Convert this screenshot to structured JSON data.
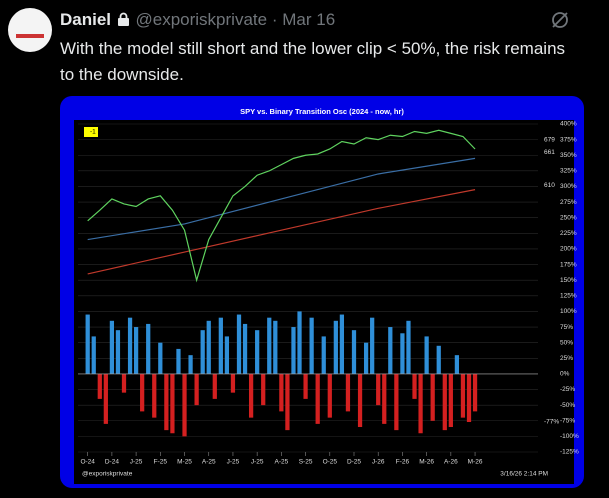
{
  "tweet": {
    "author": "Daniel",
    "handle": "@exporiskprivate",
    "separator": "·",
    "date": "Mar 16",
    "text": "With the model still short and the lower clip < 50%, the risk remains to the downside."
  },
  "chart_data": {
    "type": "combo",
    "title": "SPY vs. Binary Transition Osc (2024 - now, hr)",
    "watermark": "@exporiskprivate",
    "timestamp": "3/16/26 2:14 PM",
    "annotations": [
      "-1",
      "679",
      "661",
      "610",
      "-77%"
    ],
    "grid": true,
    "grid_color": "#2a2a2a",
    "xlim": [
      -0.4,
      18.6
    ],
    "xticks": [
      {
        "value": 0,
        "label": "O-24"
      },
      {
        "value": 1,
        "label": "D-24"
      },
      {
        "value": 2,
        "label": "J-25"
      },
      {
        "value": 3,
        "label": "F-25"
      },
      {
        "value": 4,
        "label": "M-25"
      },
      {
        "value": 5,
        "label": "A-25"
      },
      {
        "value": 6,
        "label": "J-25"
      },
      {
        "value": 7,
        "label": "J-25"
      },
      {
        "value": 8,
        "label": "A-25"
      },
      {
        "value": 9,
        "label": "S-25"
      },
      {
        "value": 10,
        "label": "O-25"
      },
      {
        "value": 11,
        "label": "D-25"
      },
      {
        "value": 12,
        "label": "J-26"
      },
      {
        "value": 13,
        "label": "F-26"
      },
      {
        "value": 14,
        "label": "M-26"
      },
      {
        "value": 15,
        "label": "A-26"
      },
      {
        "value": 16,
        "label": "M-26"
      }
    ],
    "ylim": [
      -125,
      400
    ],
    "yticks": [
      {
        "value": 400,
        "label": "400%"
      },
      {
        "value": 375,
        "label": "375%"
      },
      {
        "value": 350,
        "label": "350%"
      },
      {
        "value": 325,
        "label": "325%"
      },
      {
        "value": 300,
        "label": "300%"
      },
      {
        "value": 275,
        "label": "275%"
      },
      {
        "value": 250,
        "label": "250%"
      },
      {
        "value": 225,
        "label": "225%"
      },
      {
        "value": 200,
        "label": "200%"
      },
      {
        "value": 175,
        "label": "175%"
      },
      {
        "value": 150,
        "label": "150%"
      },
      {
        "value": 125,
        "label": "125%"
      },
      {
        "value": 100,
        "label": "100%"
      },
      {
        "value": 75,
        "label": "75%"
      },
      {
        "value": 50,
        "label": "50%"
      },
      {
        "value": 25,
        "label": "25%"
      },
      {
        "value": 0,
        "label": "0%"
      },
      {
        "value": -25,
        "label": "-25%"
      },
      {
        "value": -50,
        "label": "-50%"
      },
      {
        "value": -75,
        "label": "-75%"
      },
      {
        "value": -100,
        "label": "-100%"
      },
      {
        "value": -125,
        "label": "-125%"
      }
    ],
    "series": [
      {
        "type": "line",
        "color": "#c0392b",
        "x": [
          0,
          4,
          8,
          12,
          16
        ],
        "values": [
          160,
          195,
          230,
          265,
          295
        ]
      },
      {
        "type": "line",
        "color": "#3a6ea5",
        "x": [
          0,
          4,
          8,
          12,
          16
        ],
        "values": [
          215,
          240,
          280,
          320,
          345
        ]
      },
      {
        "type": "line",
        "color": "#5fd35f",
        "x": [
          0,
          0.5,
          1,
          1.5,
          2,
          2.5,
          3,
          3.5,
          4,
          4.5,
          5,
          5.5,
          6,
          6.5,
          7,
          7.5,
          8,
          8.5,
          9,
          9.5,
          10,
          10.5,
          11,
          11.5,
          12,
          12.5,
          13,
          13.5,
          14,
          14.5,
          15,
          15.5,
          16
        ],
        "values": [
          245,
          262,
          280,
          272,
          268,
          280,
          285,
          262,
          230,
          150,
          215,
          250,
          285,
          300,
          318,
          325,
          335,
          345,
          350,
          352,
          360,
          372,
          368,
          378,
          375,
          382,
          380,
          388,
          385,
          390,
          385,
          380,
          360
        ]
      },
      {
        "type": "bar",
        "positive_color": "#2f8fd8",
        "negative_color": "#d42020",
        "x": [
          0,
          0.25,
          0.5,
          0.75,
          1,
          1.25,
          1.5,
          1.75,
          2,
          2.25,
          2.5,
          2.75,
          3,
          3.25,
          3.5,
          3.75,
          4,
          4.25,
          4.5,
          4.75,
          5,
          5.25,
          5.5,
          5.75,
          6,
          6.25,
          6.5,
          6.75,
          7,
          7.25,
          7.5,
          7.75,
          8,
          8.25,
          8.5,
          8.75,
          9,
          9.25,
          9.5,
          9.75,
          10,
          10.25,
          10.5,
          10.75,
          11,
          11.25,
          11.5,
          11.75,
          12,
          12.25,
          12.5,
          12.75,
          13,
          13.25,
          13.5,
          13.75,
          14,
          14.25,
          14.5,
          14.75,
          15,
          15.25,
          15.5,
          15.75,
          16
        ],
        "values": [
          95,
          60,
          -40,
          -80,
          85,
          70,
          -30,
          90,
          75,
          -60,
          80,
          -70,
          50,
          -90,
          -95,
          40,
          -100,
          30,
          -50,
          70,
          85,
          -40,
          90,
          60,
          -30,
          95,
          80,
          -70,
          70,
          -50,
          90,
          85,
          -60,
          -90,
          75,
          100,
          -40,
          90,
          -80,
          60,
          -70,
          85,
          95,
          -60,
          70,
          -85,
          50,
          90,
          -50,
          -80,
          75,
          -90,
          65,
          85,
          -40,
          -95,
          60,
          -75,
          45,
          -90,
          -85,
          30,
          -70,
          -77,
          -60
        ]
      }
    ]
  }
}
